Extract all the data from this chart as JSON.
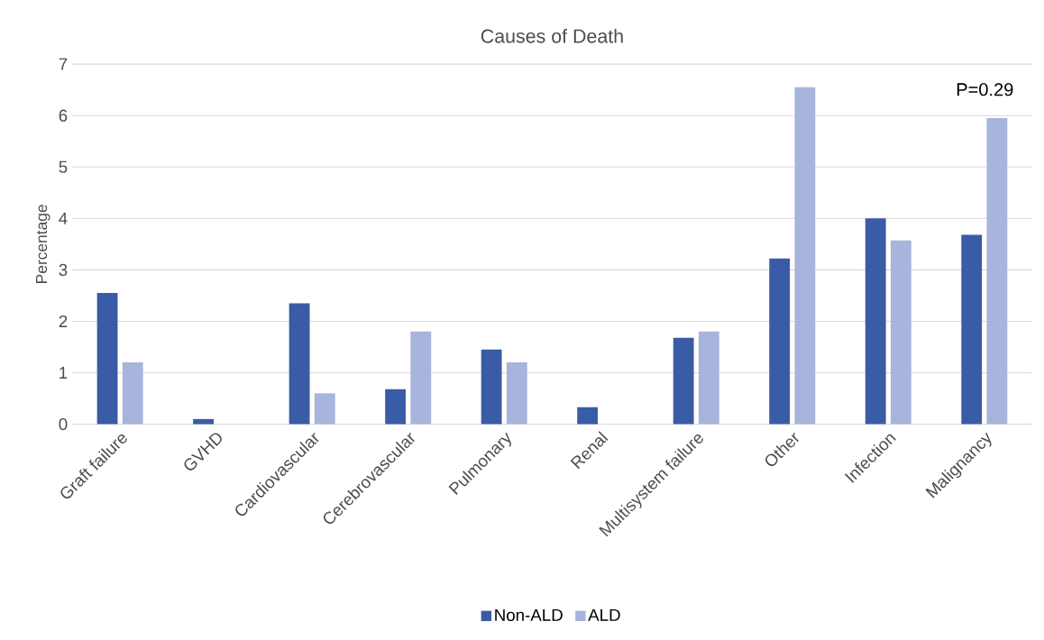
{
  "chart_data": {
    "type": "bar",
    "title": "Causes of Death",
    "ylabel": "Percentage",
    "categories": [
      "Graft failure",
      "GVHD",
      "Cardiovascular",
      "Cerebrovascular",
      "Pulmonary",
      "Renal",
      "Multisystem failure",
      "Other",
      "Infection",
      "Malignancy"
    ],
    "series": [
      {
        "name": "Non-ALD",
        "color": "#3a5ba5",
        "values": [
          2.55,
          0.1,
          2.35,
          0.68,
          1.45,
          0.33,
          1.68,
          3.22,
          4.0,
          3.68
        ]
      },
      {
        "name": "ALD",
        "color": "#a7b4db",
        "values": [
          1.2,
          0,
          0.6,
          1.8,
          1.2,
          0,
          1.8,
          6.55,
          3.57,
          5.95
        ]
      }
    ],
    "ylim": [
      0,
      7
    ],
    "yticks": [
      0,
      1,
      2,
      3,
      4,
      5,
      6,
      7
    ],
    "grid": "y",
    "legend": "bottom",
    "annotations": [
      "P=0.29"
    ]
  }
}
